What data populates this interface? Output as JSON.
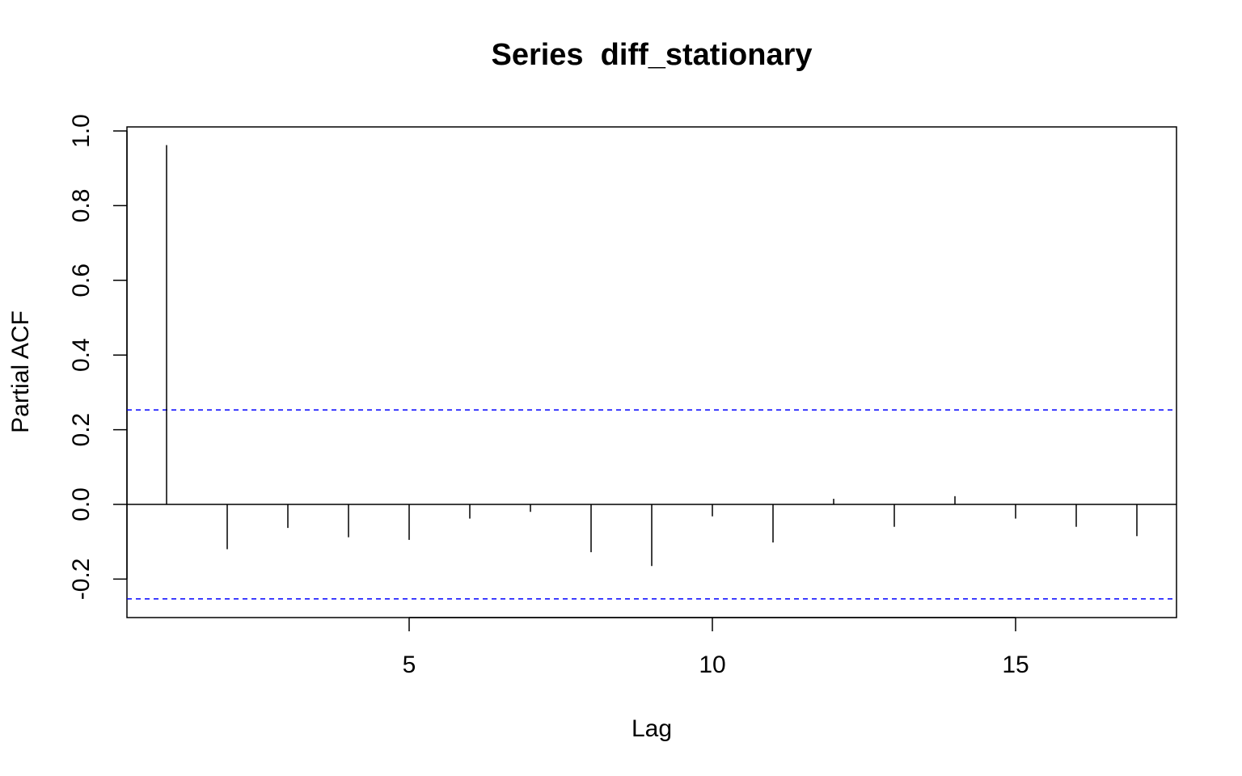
{
  "chart_data": {
    "type": "bar",
    "title": "Series  diff_stationary",
    "xlabel": "Lag",
    "ylabel": "Partial ACF",
    "xlim": [
      0.35,
      17.65
    ],
    "ylim": [
      -0.3,
      1.0
    ],
    "x_ticks": [
      5,
      10,
      15
    ],
    "y_ticks": [
      -0.2,
      0.0,
      0.2,
      0.4,
      0.6,
      0.8,
      1.0
    ],
    "x": [
      1,
      2,
      3,
      4,
      5,
      6,
      7,
      8,
      9,
      10,
      11,
      12,
      13,
      14,
      15,
      16,
      17
    ],
    "values": [
      0.962,
      -0.12,
      -0.063,
      -0.088,
      -0.095,
      -0.038,
      -0.02,
      -0.128,
      -0.165,
      -0.032,
      -0.102,
      0.015,
      -0.06,
      0.022,
      -0.038,
      -0.06,
      -0.085
    ],
    "confidence_band": 0.253,
    "colors": {
      "bars": "#000000",
      "band": "#0000ff",
      "zero_line": "#000000"
    },
    "grid": false,
    "legend": "none"
  }
}
